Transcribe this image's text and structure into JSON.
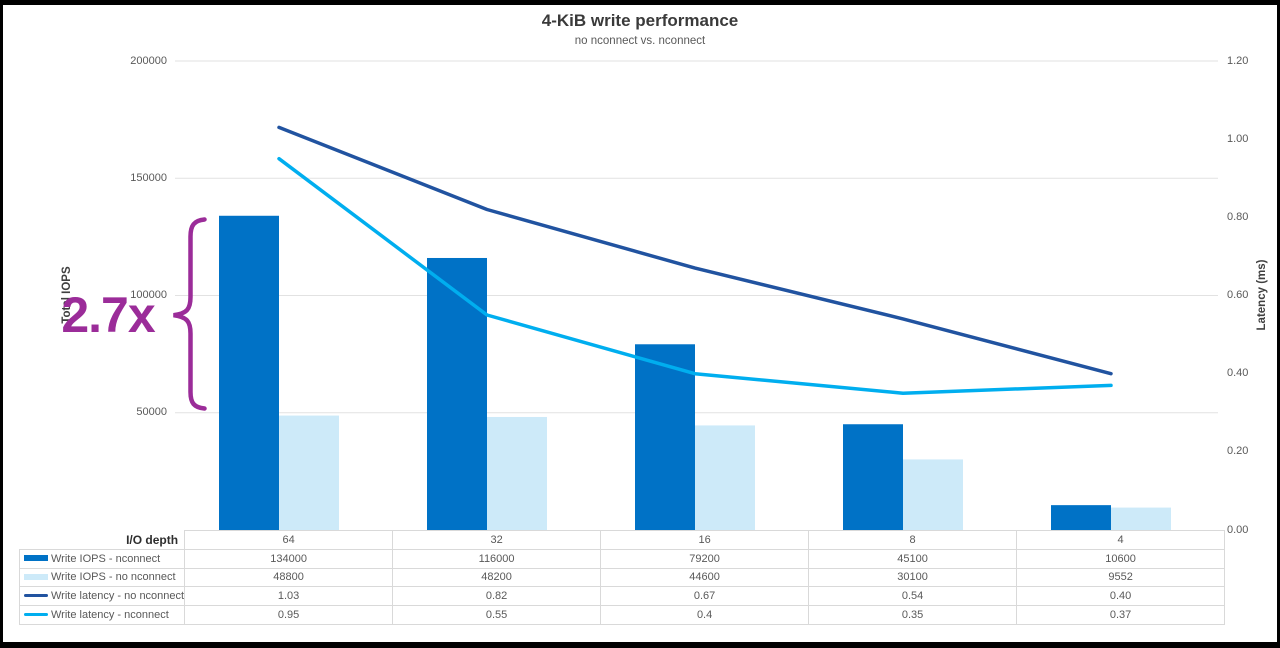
{
  "title": "4-KiB write performance",
  "subtitle": "no nconnect vs. nconnect",
  "annotation": {
    "label": "2.7x",
    "color": "#9b2c99"
  },
  "axes": {
    "left": {
      "title": "Total IOPS",
      "ticks": [
        {
          "label": "200000",
          "value": 200000
        },
        {
          "label": "150000",
          "value": 150000
        },
        {
          "label": "100000",
          "value": 100000
        },
        {
          "label": "50000",
          "value": 50000
        }
      ]
    },
    "right": {
      "title": "Latency (ms)",
      "ticks": [
        {
          "label": "1.20",
          "value": 1.2
        },
        {
          "label": "1.00",
          "value": 1.0
        },
        {
          "label": "0.80",
          "value": 0.8
        },
        {
          "label": "0.60",
          "value": 0.6
        },
        {
          "label": "0.40",
          "value": 0.4
        },
        {
          "label": "0.20",
          "value": 0.2
        },
        {
          "label": "0.00",
          "value": 0.0
        }
      ]
    }
  },
  "chart_data": {
    "type": "bar+line combo with data table legend",
    "title": "4-KiB write performance",
    "subtitle": "no nconnect vs. nconnect",
    "category_axis_label": "I/O depth",
    "categories": [
      "64",
      "32",
      "16",
      "8",
      "4"
    ],
    "left_axis": {
      "label": "Total IOPS",
      "range": [
        0,
        200000
      ],
      "grid_interval": 50000
    },
    "right_axis": {
      "label": "Latency (ms)",
      "range": [
        0,
        1.2
      ],
      "tick_interval": 0.2
    },
    "grid": true,
    "legend_position": "data-table-left",
    "bar_series": [
      {
        "name": "Write IOPS - nconnect",
        "axis": "left",
        "color": "#0072c6",
        "values": [
          134000,
          116000,
          79200,
          45100,
          10600
        ],
        "display": [
          "134000",
          "116000",
          "79200",
          "45100",
          "10600"
        ]
      },
      {
        "name": "Write IOPS - no nconnect",
        "axis": "left",
        "color": "#cdeaf9",
        "values": [
          48800,
          48200,
          44600,
          30100,
          9552
        ],
        "display": [
          "48800",
          "48200",
          "44600",
          "30100",
          "9552"
        ]
      }
    ],
    "line_series": [
      {
        "name": "Write latency - no nconnect",
        "axis": "right",
        "color": "#2153a0",
        "values": [
          1.03,
          0.82,
          0.67,
          0.54,
          0.4
        ],
        "display": [
          "1.03",
          "0.82",
          "0.67",
          "0.54",
          "0.40"
        ]
      },
      {
        "name": "Write latency - nconnect",
        "axis": "right",
        "color": "#00aeef",
        "values": [
          0.95,
          0.55,
          0.4,
          0.35,
          0.37
        ],
        "display": [
          "0.95",
          "0.55",
          "0.4",
          "0.35",
          "0.37"
        ]
      }
    ],
    "annotation": {
      "text": "2.7x",
      "meaning": "IOPS uplift at I/O depth 64",
      "color": "#9b2c99"
    }
  },
  "colors": {
    "grid": "#e2e2e2",
    "table_border": "#d9d9d9",
    "text_muted": "#595959"
  }
}
